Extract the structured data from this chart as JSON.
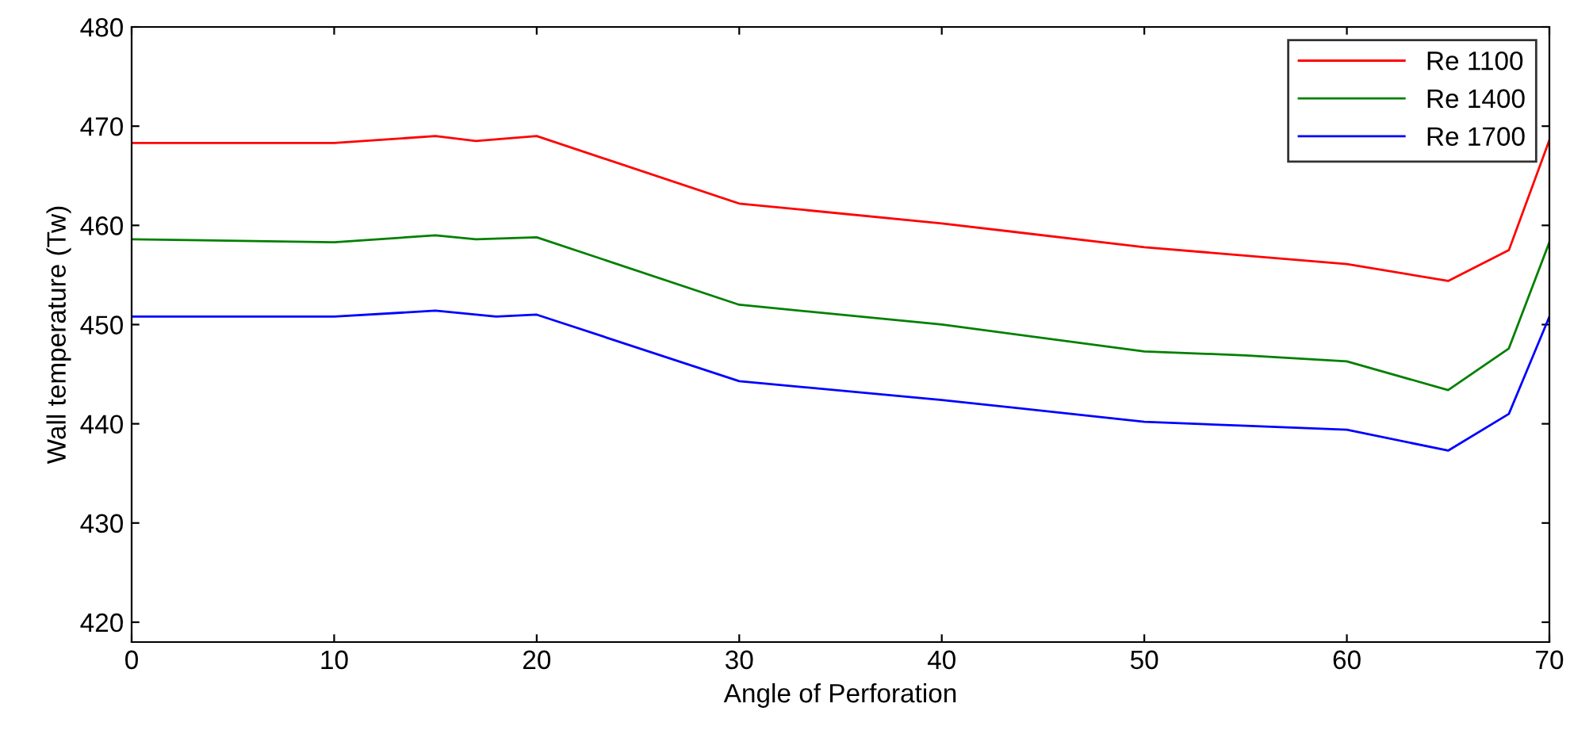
{
  "chart_data": {
    "type": "line",
    "xlabel": "Angle of Perforation",
    "ylabel": "Wall temperature (Tw)",
    "xlim": [
      0,
      70
    ],
    "xticks": [
      0,
      10,
      20,
      30,
      40,
      50,
      60,
      70
    ],
    "ylim": [
      418,
      480
    ],
    "yticks": [
      420,
      430,
      440,
      450,
      460,
      470,
      480
    ],
    "grid": false,
    "legend": "top right",
    "marker": "none",
    "line_style": "solid",
    "series": [
      {
        "name": "Re 1100",
        "color": "#ff0000",
        "x": [
          0,
          10,
          15,
          17,
          20,
          30,
          40,
          50,
          60,
          65,
          68,
          70
        ],
        "values": [
          468.3,
          468.3,
          469,
          468.5,
          469,
          462.2,
          460.2,
          457.8,
          456.1,
          454.4,
          457.5,
          468.6
        ]
      },
      {
        "name": "Re 1400",
        "color": "#008000",
        "x": [
          0,
          10,
          15,
          17,
          20,
          30,
          40,
          50,
          55,
          60,
          65,
          68,
          70
        ],
        "values": [
          458.6,
          458.3,
          459,
          458.6,
          458.8,
          452,
          450,
          447.3,
          446.9,
          446.3,
          443.4,
          447.6,
          458.3
        ]
      },
      {
        "name": "Re 1700",
        "color": "#0000ff",
        "x": [
          0,
          10,
          15,
          18,
          20,
          30,
          40,
          50,
          55,
          60,
          65,
          68,
          70
        ],
        "values": [
          450.8,
          450.8,
          451.4,
          450.8,
          451,
          444.3,
          442.4,
          440.2,
          439.8,
          439.4,
          437.3,
          441,
          450.8
        ]
      }
    ]
  }
}
